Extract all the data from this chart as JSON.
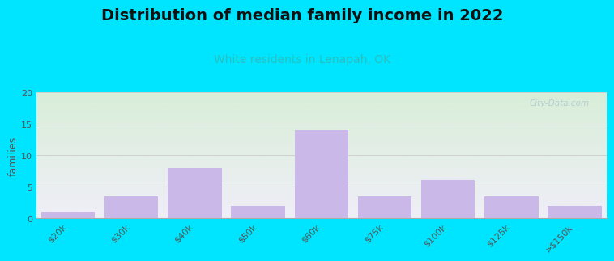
{
  "title": "Distribution of median family income in 2022",
  "subtitle": "White residents in Lenapah, OK",
  "ylabel": "families",
  "categories": [
    "$20k",
    "$30k",
    "$40k",
    "$50k",
    "$60k",
    "$75k",
    "$100k",
    "$125k",
    ">$150k"
  ],
  "values": [
    1,
    3.5,
    8,
    2,
    14,
    3.5,
    6,
    3.5,
    2
  ],
  "bar_color": "#c9b8e8",
  "ylim": [
    0,
    20
  ],
  "yticks": [
    0,
    5,
    10,
    15,
    20
  ],
  "background_outer": "#00e5ff",
  "background_plot_top_left": "#d8eed8",
  "background_plot_bottom_right": "#f0eef8",
  "title_fontsize": 14,
  "subtitle_fontsize": 10,
  "subtitle_color": "#2abfbf",
  "title_color": "#111111",
  "watermark_text": "City-Data.com",
  "watermark_color": "#b0c8d0",
  "grid_color": "#cccccc",
  "tick_label_color": "#555555",
  "ylabel_color": "#555555"
}
